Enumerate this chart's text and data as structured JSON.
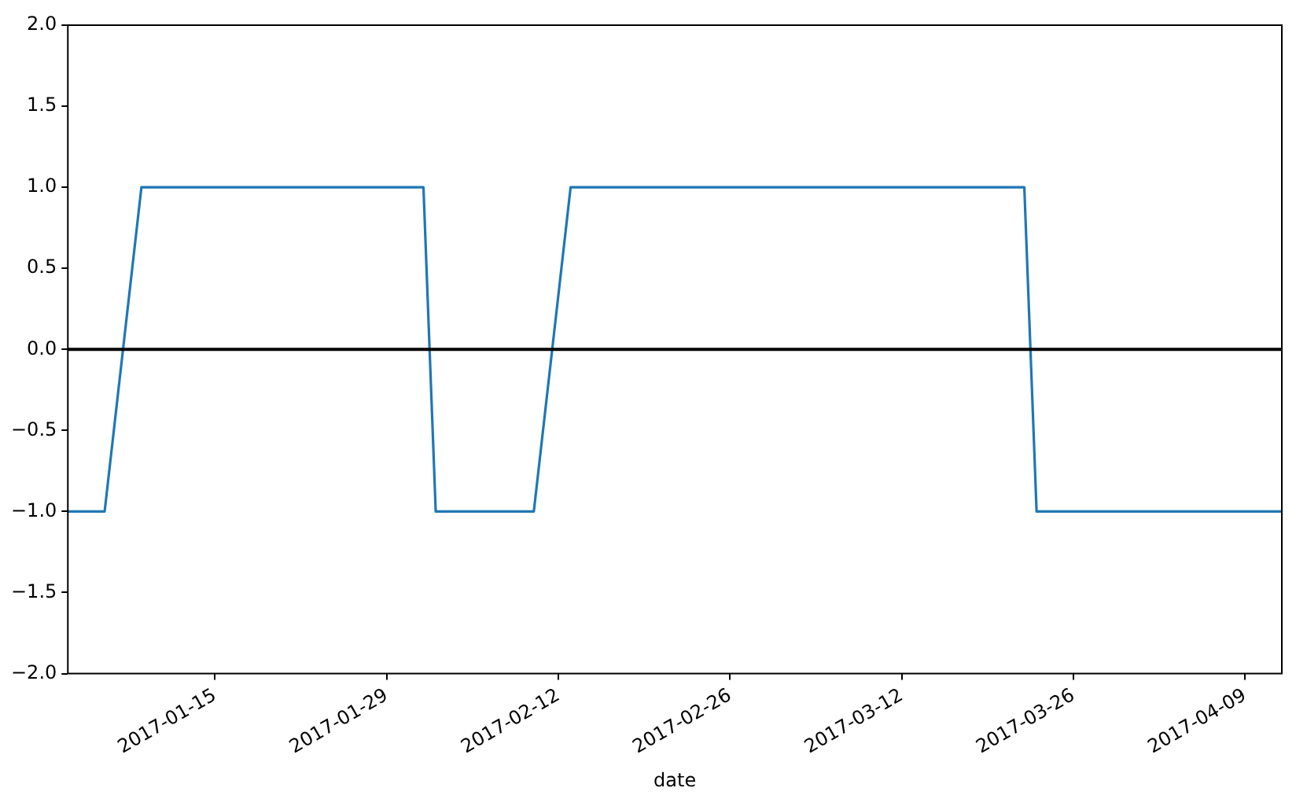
{
  "chart_data": {
    "type": "line",
    "xlabel": "date",
    "x": [
      "2017-01-03",
      "2017-01-06",
      "2017-01-09",
      "2017-02-01",
      "2017-02-02",
      "2017-02-10",
      "2017-02-13",
      "2017-03-22",
      "2017-03-23",
      "2017-04-12"
    ],
    "series": [
      {
        "color": "#1f77b4",
        "values": [
          -1,
          -1,
          1,
          1,
          -1,
          -1,
          1,
          1,
          -1,
          -1
        ]
      }
    ],
    "xlim": [
      "2017-01-03",
      "2017-04-12"
    ],
    "xticks": [
      "2017-01-15",
      "2017-01-29",
      "2017-02-12",
      "2017-02-26",
      "2017-03-12",
      "2017-03-26",
      "2017-04-09"
    ],
    "ylim": [
      -2,
      2
    ],
    "yticks": [
      {
        "value": -2,
        "label": "−2.0"
      },
      {
        "value": -1.5,
        "label": "−1.5"
      },
      {
        "value": -1,
        "label": "−1.0"
      },
      {
        "value": -0.5,
        "label": "−0.5"
      },
      {
        "value": 0,
        "label": "0.0"
      },
      {
        "value": 0.5,
        "label": "0.5"
      },
      {
        "value": 1,
        "label": "1.0"
      },
      {
        "value": 1.5,
        "label": "1.5"
      },
      {
        "value": 2,
        "label": "2.0"
      }
    ],
    "ref_lines": [
      {
        "axis": "y",
        "value": 0,
        "color": "#000000"
      }
    ],
    "grid": false,
    "legend": false,
    "line_style": "solid",
    "marker": "none"
  }
}
